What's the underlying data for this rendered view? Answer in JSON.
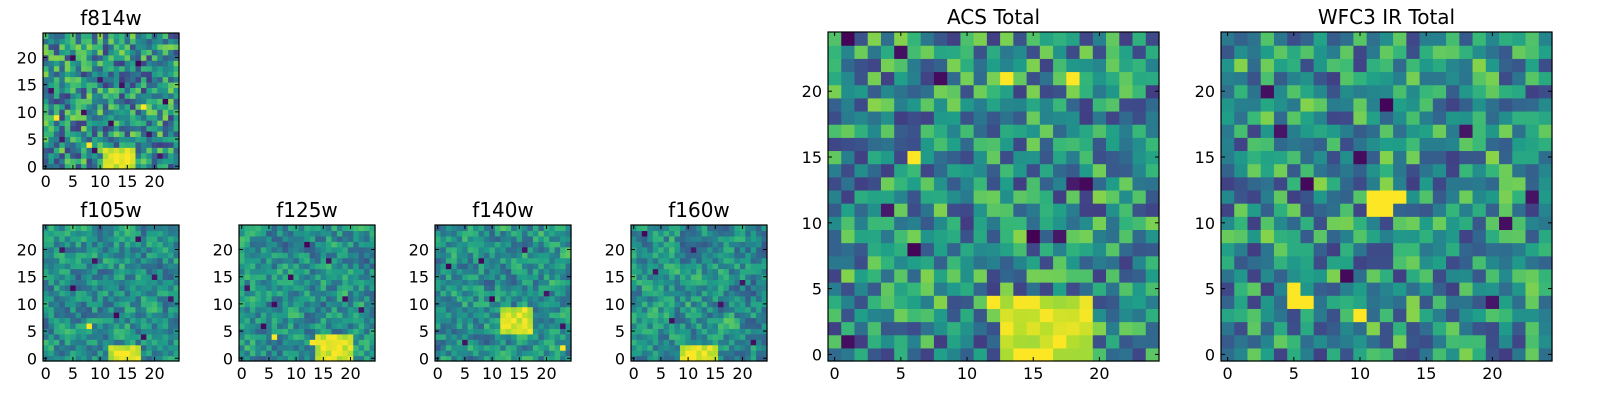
{
  "chart_data": [
    {
      "type": "heatmap",
      "id": "f814w",
      "title": "f814w",
      "grid": [
        25,
        25
      ],
      "colormap": "viridis",
      "xlim": [
        -0.5,
        24.5
      ],
      "ylim": [
        -0.5,
        24.5
      ],
      "xticks": [
        "0",
        "5",
        "10",
        "15",
        "20"
      ],
      "yticks": [
        "0",
        "5",
        "10",
        "15",
        "20"
      ],
      "seed": 11,
      "smooth": 0,
      "bright_region": [
        11,
        16,
        0,
        3
      ],
      "dark_cells": [
        [
          3,
          5
        ],
        [
          7,
          10
        ],
        [
          12,
          8
        ],
        [
          19,
          6
        ],
        [
          14,
          15
        ],
        [
          5,
          20
        ],
        [
          22,
          12
        ],
        [
          9,
          3
        ],
        [
          17,
          19
        ],
        [
          1,
          14
        ],
        [
          10,
          16
        ],
        [
          21,
          2
        ]
      ],
      "bright_cells": [
        [
          13,
          1
        ],
        [
          15,
          2
        ],
        [
          2,
          9
        ],
        [
          18,
          11
        ],
        [
          8,
          4
        ]
      ]
    },
    {
      "type": "heatmap",
      "id": "f105w",
      "title": "f105w",
      "grid": [
        25,
        25
      ],
      "colormap": "viridis",
      "xlim": [
        -0.5,
        24.5
      ],
      "ylim": [
        -0.5,
        24.5
      ],
      "xticks": [
        "0",
        "5",
        "10",
        "15",
        "20"
      ],
      "yticks": [
        "0",
        "5",
        "10",
        "15",
        "20"
      ],
      "seed": 23,
      "smooth": 1,
      "bright_region": [
        12,
        17,
        0,
        2
      ],
      "dark_cells": [
        [
          17,
          22
        ],
        [
          5,
          13
        ],
        [
          9,
          18
        ],
        [
          18,
          4
        ],
        [
          13,
          8
        ],
        [
          23,
          11
        ],
        [
          3,
          20
        ],
        [
          20,
          15
        ]
      ],
      "bright_cells": [
        [
          14,
          1
        ],
        [
          15,
          1
        ],
        [
          8,
          6
        ]
      ]
    },
    {
      "type": "heatmap",
      "id": "f125w",
      "title": "f125w",
      "grid": [
        25,
        25
      ],
      "colormap": "viridis",
      "xlim": [
        -0.5,
        24.5
      ],
      "ylim": [
        -0.5,
        24.5
      ],
      "xticks": [
        "0",
        "5",
        "10",
        "15",
        "20"
      ],
      "yticks": [
        "0",
        "5",
        "10",
        "15",
        "20"
      ],
      "seed": 37,
      "smooth": 1,
      "bright_region": [
        14,
        20,
        0,
        4
      ],
      "dark_cells": [
        [
          6,
          10
        ],
        [
          9,
          15
        ],
        [
          4,
          6
        ],
        [
          19,
          11
        ],
        [
          12,
          21
        ],
        [
          1,
          13
        ],
        [
          22,
          9
        ],
        [
          16,
          18
        ]
      ],
      "bright_cells": [
        [
          17,
          1
        ],
        [
          18,
          2
        ],
        [
          6,
          4
        ],
        [
          13,
          3
        ]
      ]
    },
    {
      "type": "heatmap",
      "id": "f140w",
      "title": "f140w",
      "grid": [
        25,
        25
      ],
      "colormap": "viridis",
      "xlim": [
        -0.5,
        24.5
      ],
      "ylim": [
        -0.5,
        24.5
      ],
      "xticks": [
        "0",
        "5",
        "10",
        "15",
        "20"
      ],
      "yticks": [
        "0",
        "5",
        "10",
        "15",
        "20"
      ],
      "seed": 41,
      "smooth": 1,
      "bright_region": [
        12,
        17,
        5,
        9
      ],
      "dark_cells": [
        [
          10,
          11
        ],
        [
          20,
          12
        ],
        [
          5,
          3
        ],
        [
          16,
          20
        ],
        [
          2,
          17
        ],
        [
          23,
          6
        ],
        [
          8,
          18
        ]
      ],
      "bright_cells": [
        [
          14,
          7
        ],
        [
          15,
          8
        ],
        [
          23,
          2
        ]
      ]
    },
    {
      "type": "heatmap",
      "id": "f160w",
      "title": "f160w",
      "grid": [
        25,
        25
      ],
      "colormap": "viridis",
      "xlim": [
        -0.5,
        24.5
      ],
      "ylim": [
        -0.5,
        24.5
      ],
      "xticks": [
        "0",
        "5",
        "10",
        "15",
        "20"
      ],
      "yticks": [
        "0",
        "5",
        "10",
        "15",
        "20"
      ],
      "seed": 53,
      "smooth": 1,
      "bright_region": [
        9,
        15,
        0,
        2
      ],
      "dark_cells": [
        [
          2,
          23
        ],
        [
          20,
          14
        ],
        [
          16,
          10
        ],
        [
          11,
          20
        ],
        [
          7,
          7
        ],
        [
          22,
          3
        ],
        [
          4,
          16
        ]
      ],
      "bright_cells": [
        [
          10,
          1
        ],
        [
          11,
          0
        ],
        [
          13,
          1
        ]
      ]
    },
    {
      "type": "heatmap",
      "id": "acs_total",
      "title": "ACS Total",
      "grid": [
        25,
        25
      ],
      "colormap": "viridis",
      "xlim": [
        -0.5,
        24.5
      ],
      "ylim": [
        -0.5,
        24.5
      ],
      "xticks": [
        "0",
        "5",
        "10",
        "15",
        "20"
      ],
      "yticks": [
        "0",
        "5",
        "10",
        "15",
        "20"
      ],
      "seed": 67,
      "smooth": 0,
      "bright_region": [
        13,
        19,
        0,
        4
      ],
      "dark_cells": [
        [
          1,
          24
        ],
        [
          5,
          23
        ],
        [
          8,
          21
        ],
        [
          18,
          13
        ],
        [
          19,
          13
        ],
        [
          4,
          11
        ],
        [
          15,
          9
        ],
        [
          17,
          9
        ],
        [
          1,
          1
        ],
        [
          6,
          8
        ]
      ],
      "bright_cells": [
        [
          14,
          0
        ],
        [
          15,
          0
        ],
        [
          16,
          0
        ],
        [
          17,
          1
        ],
        [
          12,
          4
        ],
        [
          6,
          15
        ],
        [
          18,
          21
        ],
        [
          13,
          21
        ]
      ]
    },
    {
      "type": "heatmap",
      "id": "wfc3_ir_total",
      "title": "WFC3 IR Total",
      "grid": [
        25,
        25
      ],
      "colormap": "viridis",
      "xlim": [
        -0.5,
        24.5
      ],
      "ylim": [
        -0.5,
        24.5
      ],
      "xticks": [
        "0",
        "5",
        "10",
        "15",
        "20"
      ],
      "yticks": [
        "0",
        "5",
        "10",
        "15",
        "20"
      ],
      "seed": 79,
      "smooth": 0,
      "bright_region": null,
      "dark_cells": [
        [
          3,
          20
        ],
        [
          4,
          17
        ],
        [
          6,
          13
        ],
        [
          10,
          15
        ],
        [
          9,
          6
        ],
        [
          20,
          4
        ],
        [
          23,
          12
        ],
        [
          18,
          17
        ],
        [
          12,
          19
        ],
        [
          21,
          10
        ]
      ],
      "bright_cells": [
        [
          11,
          12
        ],
        [
          12,
          12
        ],
        [
          11,
          11
        ],
        [
          12,
          11
        ],
        [
          13,
          12
        ],
        [
          5,
          5
        ],
        [
          5,
          4
        ],
        [
          6,
          4
        ],
        [
          10,
          3
        ]
      ]
    }
  ]
}
